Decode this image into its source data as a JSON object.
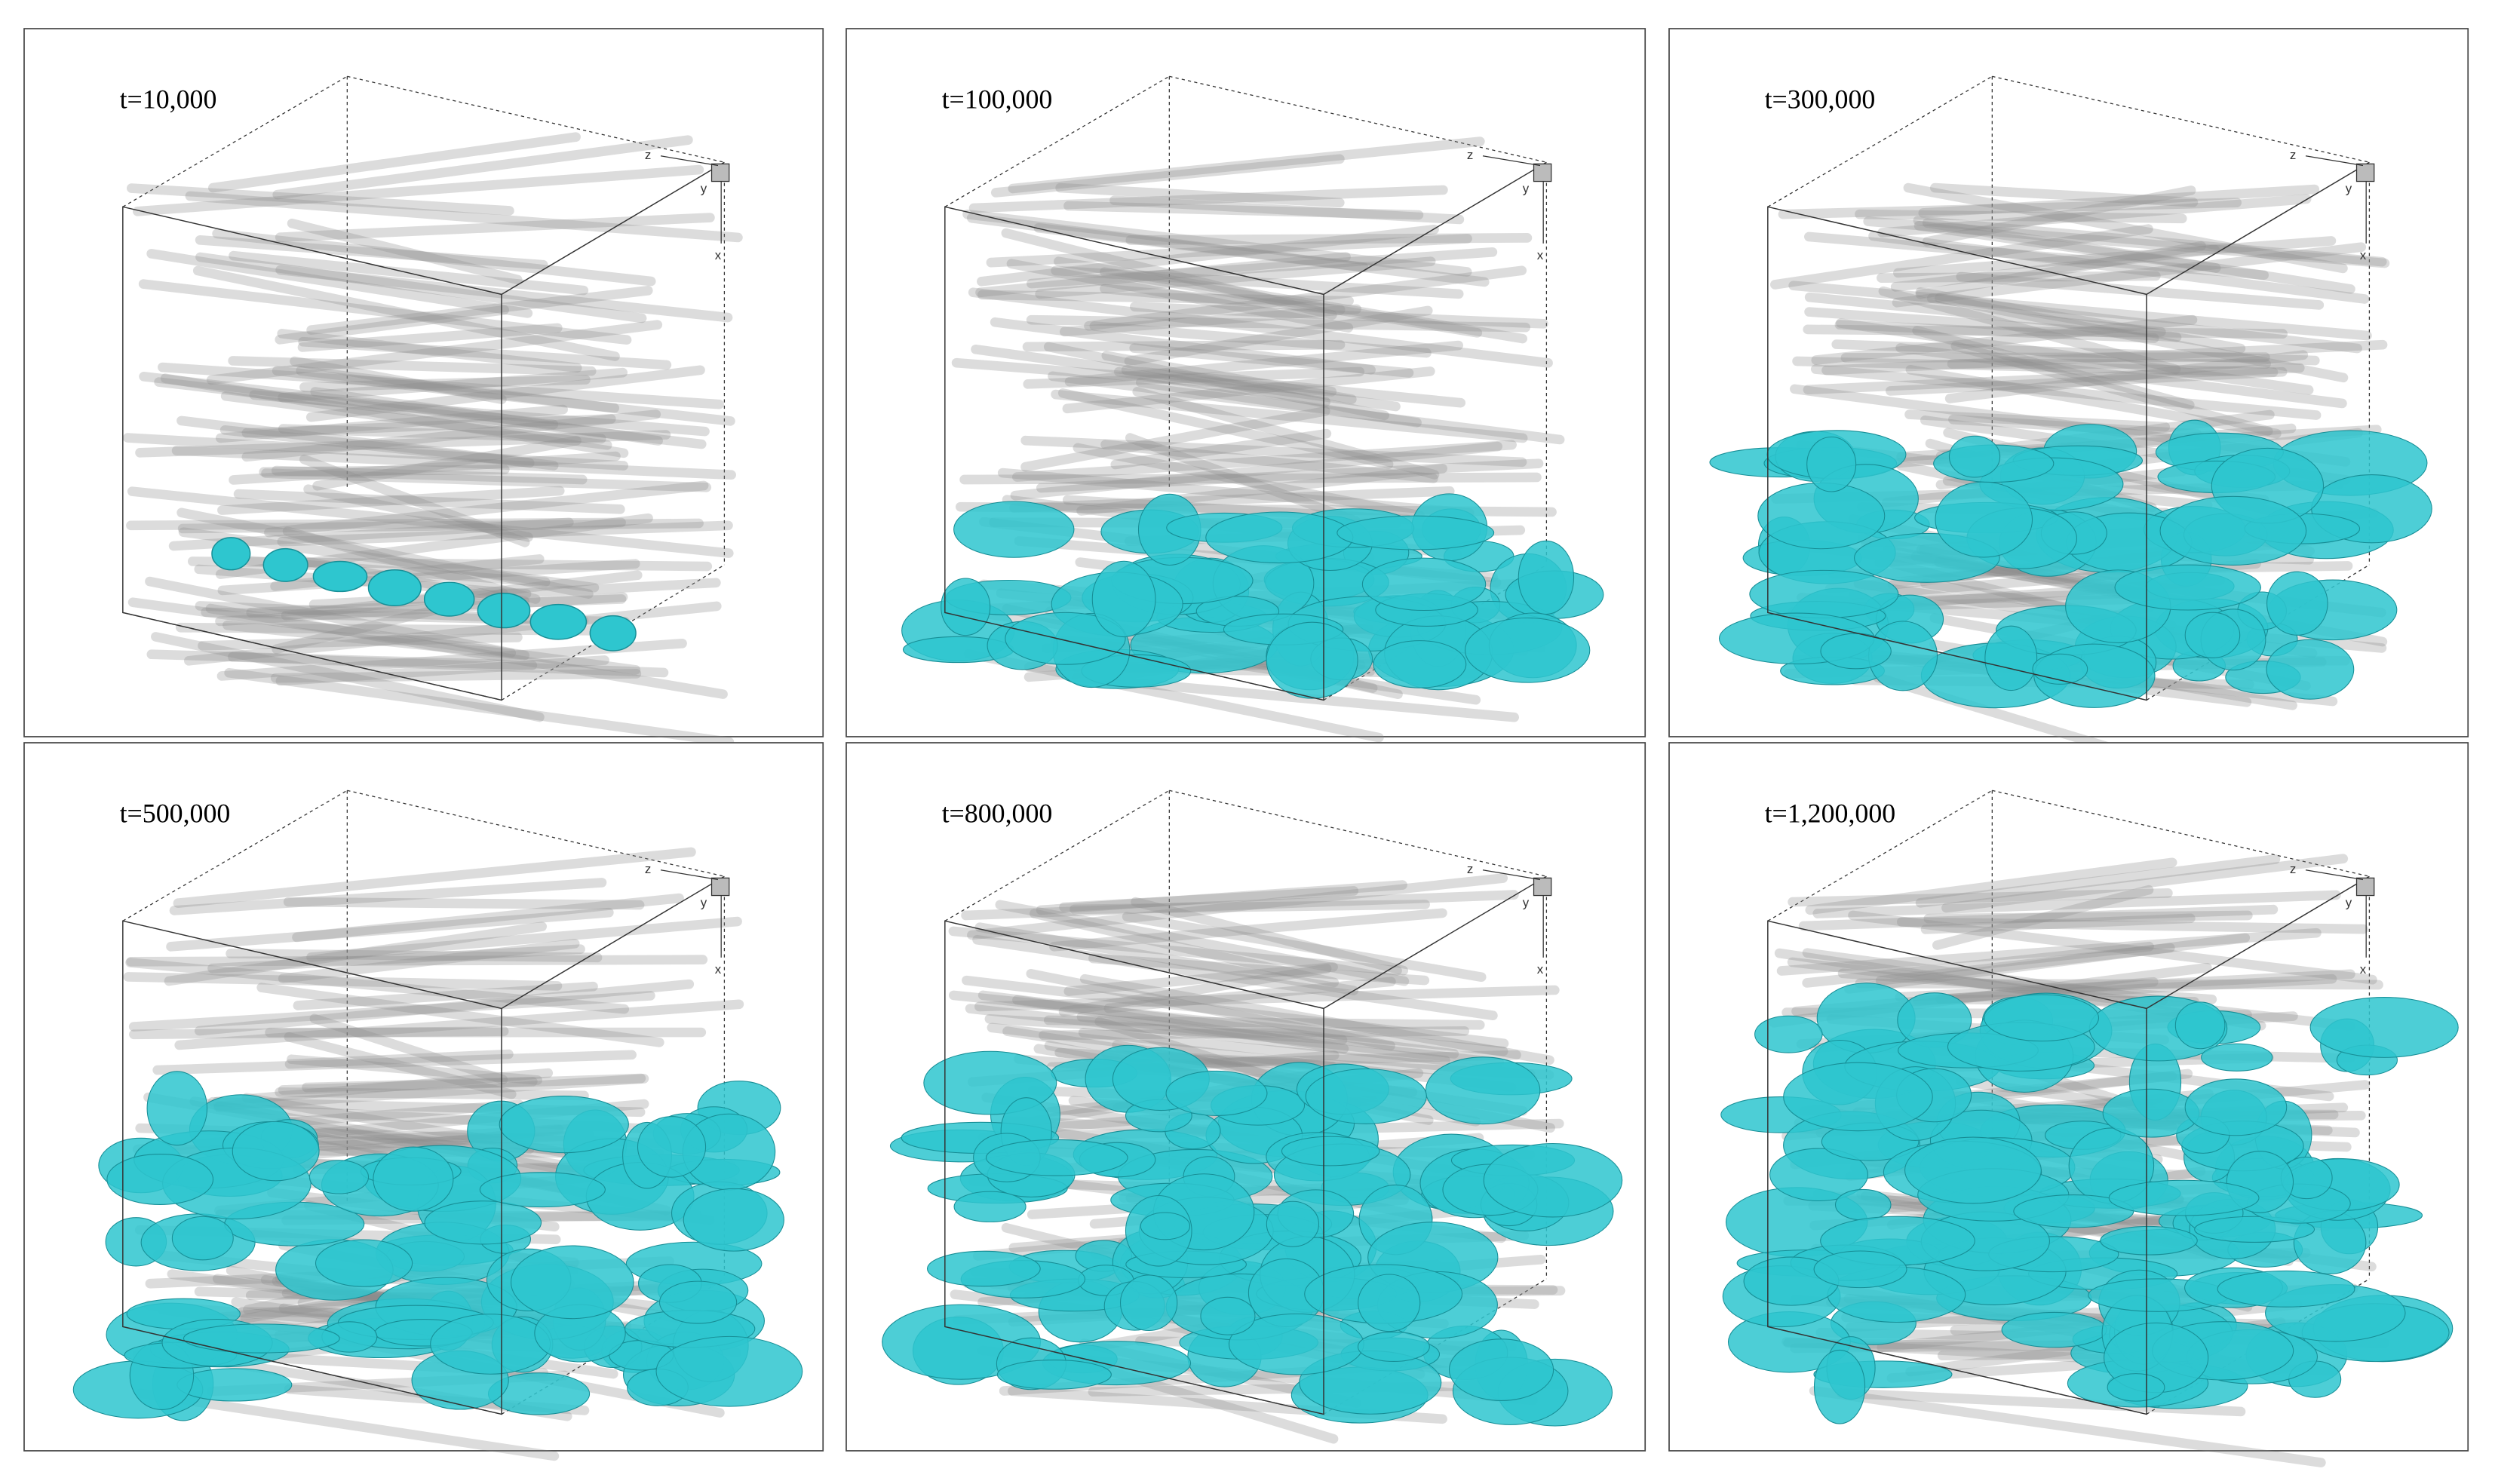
{
  "panels": [
    {
      "label": "t=10,000"
    },
    {
      "label": "t=100,000"
    },
    {
      "label": "t=300,000"
    },
    {
      "label": "t=500,000"
    },
    {
      "label": "t=800,000"
    },
    {
      "label": "t=1,200,000"
    }
  ],
  "axis_labels": [
    "z",
    "y",
    "x"
  ]
}
